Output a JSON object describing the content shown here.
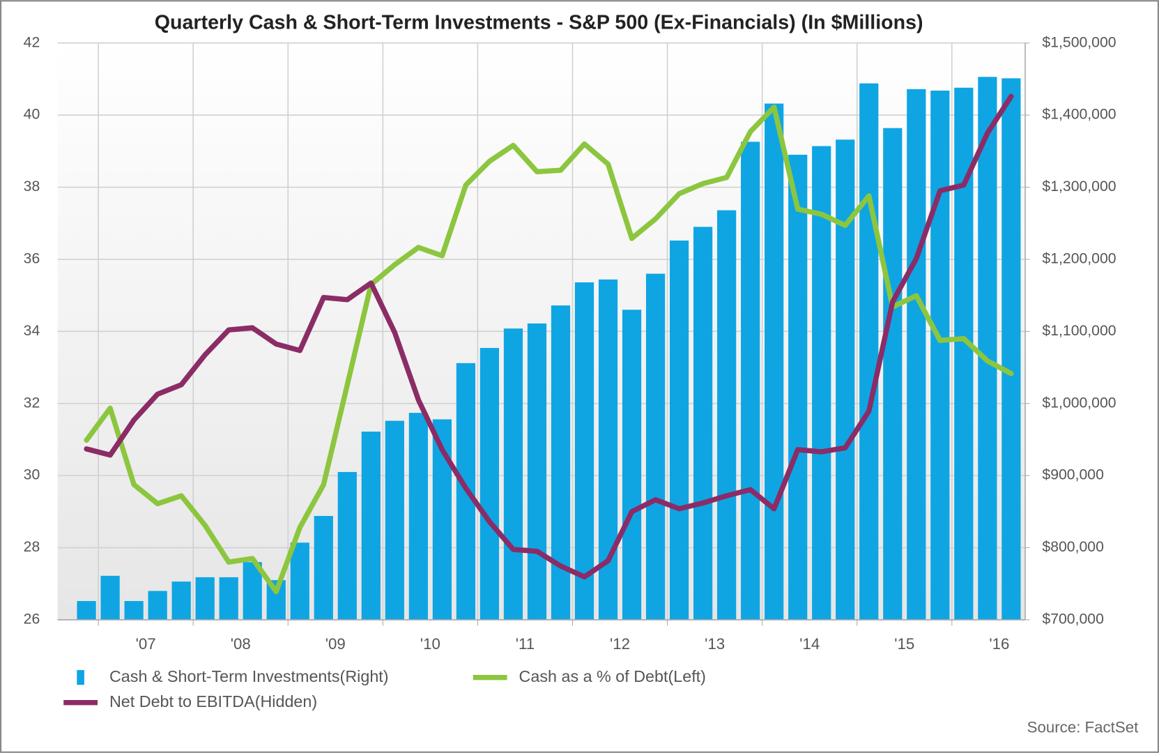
{
  "chart_data": {
    "type": "bar-line",
    "title": "Quarterly Cash & Short-Term Investments - S&P 500 (Ex-Financials) (In $Millions)",
    "source": "Source: FactSet",
    "categories": [
      null,
      null,
      null,
      null,
      null,
      null,
      null,
      null,
      null,
      null,
      null,
      null,
      null,
      null,
      null,
      null,
      null,
      null,
      null,
      null,
      null,
      null,
      null,
      null,
      null,
      null,
      null,
      null,
      null,
      null,
      null,
      null,
      null,
      null,
      null,
      null,
      null,
      null,
      null,
      null
    ],
    "year_labels": [
      "'07",
      "'08",
      "'09",
      "'10",
      "'11",
      "'12",
      "'13",
      "'14",
      "'15",
      "'16"
    ],
    "ylim": [
      26,
      42
    ],
    "yticks": [
      26,
      28,
      30,
      32,
      34,
      36,
      38,
      40,
      42
    ],
    "y2lim": [
      700000,
      1500000
    ],
    "y2ticks": [
      {
        "value": 700000,
        "label": "$700,000"
      },
      {
        "value": 800000,
        "label": "$800,000"
      },
      {
        "value": 900000,
        "label": "$900,000"
      },
      {
        "value": 1000000,
        "label": "$1,000,000"
      },
      {
        "value": 1100000,
        "label": "$1,100,000"
      },
      {
        "value": 1200000,
        "label": "$1,200,000"
      },
      {
        "value": 1300000,
        "label": "$1,300,000"
      },
      {
        "value": 1400000,
        "label": "$1,400,000"
      },
      {
        "value": 1500000,
        "label": "$1,500,000"
      }
    ],
    "grid": true,
    "series": [
      {
        "name": "Cash & Short-Term Investments(Right)",
        "type": "bar",
        "axis": "y2",
        "color": "#0fa5e3",
        "values": [
          726000,
          761000,
          726000,
          740000,
          753000,
          759000,
          759000,
          780000,
          755000,
          807000,
          844000,
          905000,
          961000,
          976000,
          987000,
          978000,
          1056000,
          1077000,
          1104000,
          1111000,
          1136000,
          1168000,
          1172000,
          1130000,
          1180000,
          1226000,
          1245000,
          1268000,
          1363000,
          1416000,
          1345000,
          1357000,
          1366000,
          1444000,
          1382000,
          1436000,
          1434000,
          1438000,
          1453000,
          1451000
        ]
      },
      {
        "name": "Cash as a % of Debt(Left)",
        "type": "line",
        "axis": "y",
        "color": "#8cc63f",
        "values": [
          30.98,
          31.87,
          29.75,
          29.22,
          29.44,
          28.62,
          27.6,
          27.7,
          26.78,
          28.56,
          29.75,
          32.52,
          35.3,
          35.85,
          36.33,
          36.1,
          38.06,
          38.72,
          39.16,
          38.43,
          38.47,
          39.2,
          38.64,
          36.58,
          37.12,
          37.82,
          38.1,
          38.27,
          39.54,
          40.22,
          37.39,
          37.25,
          36.94,
          37.76,
          34.68,
          34.99,
          33.75,
          33.8,
          33.18,
          32.83
        ]
      },
      {
        "name": "Net Debt to EBITDA(Hidden)",
        "type": "line",
        "axis": "y",
        "color": "#8b2c66",
        "values": [
          30.74,
          30.57,
          31.54,
          32.26,
          32.52,
          33.35,
          34.04,
          34.1,
          33.65,
          33.47,
          34.94,
          34.88,
          35.34,
          33.97,
          32.1,
          30.72,
          29.65,
          28.72,
          27.95,
          27.9,
          27.49,
          27.19,
          27.64,
          29,
          29.33,
          29.08,
          29.24,
          29.44,
          29.61,
          29.08,
          30.72,
          30.66,
          30.77,
          31.79,
          34.82,
          36.02,
          37.9,
          38.06,
          39.5,
          40.52
        ]
      }
    ]
  }
}
